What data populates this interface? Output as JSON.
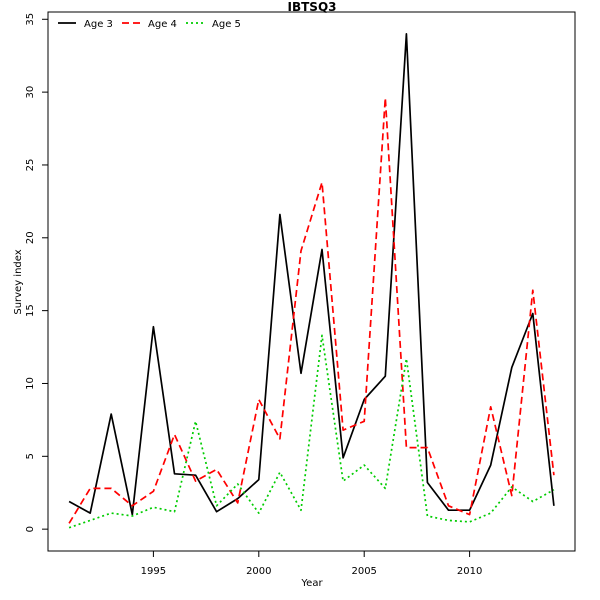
{
  "chart_data": {
    "type": "line",
    "title": "IBTSQ3",
    "xlabel": "Year",
    "ylabel": "Survey index",
    "xlim": [
      1990,
      2015
    ],
    "ylim": [
      -1.5,
      35.5
    ],
    "x_ticks": [
      1995,
      2000,
      2005,
      2010
    ],
    "y_ticks": [
      0,
      5,
      10,
      15,
      20,
      25,
      30,
      35
    ],
    "grid": false,
    "legend_position": "top-left",
    "x": [
      1991,
      1992,
      1993,
      1994,
      1995,
      1996,
      1997,
      1998,
      1999,
      2000,
      2001,
      2002,
      2003,
      2004,
      2005,
      2006,
      2007,
      2008,
      2009,
      2010,
      2011,
      2012,
      2013,
      2014
    ],
    "series": [
      {
        "name": "Age 3",
        "color": "#000000",
        "dash": "solid",
        "values": [
          1.9,
          1.1,
          7.9,
          1.0,
          13.9,
          3.8,
          3.7,
          1.2,
          2.1,
          3.4,
          21.6,
          10.7,
          19.2,
          4.9,
          8.9,
          10.5,
          34.0,
          3.2,
          1.3,
          1.3,
          4.4,
          11.1,
          14.8,
          1.6
        ]
      },
      {
        "name": "Age 4",
        "color": "#ff0000",
        "dash": "dashed",
        "values": [
          0.4,
          2.8,
          2.8,
          1.6,
          2.6,
          6.5,
          3.3,
          4.1,
          1.8,
          8.9,
          6.2,
          19.1,
          23.8,
          6.8,
          7.4,
          29.6,
          5.6,
          5.6,
          1.6,
          1.0,
          8.4,
          2.3,
          16.4,
          3.7
        ]
      },
      {
        "name": "Age 5",
        "color": "#00cc00",
        "dash": "dotted",
        "values": [
          0.1,
          0.6,
          1.1,
          0.9,
          1.5,
          1.2,
          7.4,
          1.6,
          3.1,
          1.1,
          3.9,
          1.3,
          13.3,
          3.3,
          4.4,
          2.8,
          11.7,
          0.9,
          0.6,
          0.5,
          1.1,
          2.9,
          1.9,
          2.7
        ]
      }
    ]
  }
}
